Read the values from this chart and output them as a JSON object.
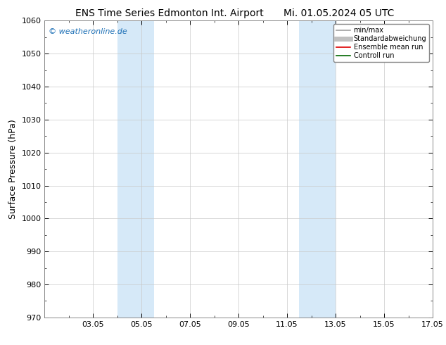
{
  "title_left": "ENS Time Series Edmonton Int. Airport",
  "title_right": "Mi. 01.05.2024 05 UTC",
  "ylabel": "Surface Pressure (hPa)",
  "ylim": [
    970,
    1060
  ],
  "yticks": [
    970,
    980,
    990,
    1000,
    1010,
    1020,
    1030,
    1040,
    1050,
    1060
  ],
  "xlim_start": 1.0,
  "xlim_end": 17.0,
  "xtick_positions": [
    3,
    5,
    7,
    9,
    11,
    13,
    15,
    17
  ],
  "xtick_labels": [
    "03.05",
    "05.05",
    "07.05",
    "09.05",
    "11.05",
    "13.05",
    "15.05",
    "17.05"
  ],
  "shaded_bands": [
    {
      "xmin": 4.0,
      "xmax": 5.5
    },
    {
      "xmin": 11.5,
      "xmax": 13.0
    }
  ],
  "shade_color": "#d6e9f8",
  "watermark": "© weatheronline.de",
  "watermark_color": "#1a6eb5",
  "bg_color": "#ffffff",
  "plot_bg_color": "#ffffff",
  "grid_color": "#c8c8c8",
  "legend_entries": [
    {
      "label": "min/max",
      "color": "#a0a0a0",
      "lw": 1.2,
      "ls": "-"
    },
    {
      "label": "Standardabweichung",
      "color": "#c0c0c0",
      "lw": 5,
      "ls": "-"
    },
    {
      "label": "Ensemble mean run",
      "color": "#dd0000",
      "lw": 1.2,
      "ls": "-"
    },
    {
      "label": "Controll run",
      "color": "#006600",
      "lw": 1.2,
      "ls": "-"
    }
  ],
  "title_fontsize": 10,
  "ylabel_fontsize": 9,
  "tick_fontsize": 8,
  "legend_fontsize": 7,
  "watermark_fontsize": 8
}
